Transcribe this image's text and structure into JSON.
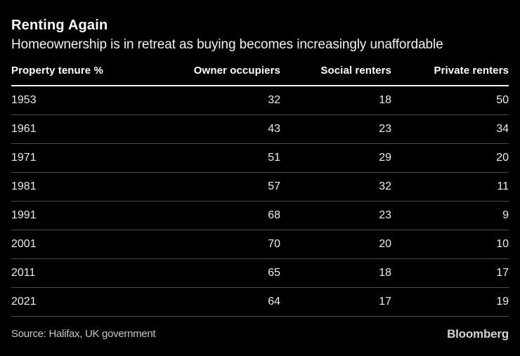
{
  "header": {
    "title": "Renting Again",
    "subtitle": "Homeownership is in retreat as buying becomes increasingly unaffordable"
  },
  "table": {
    "columns": [
      "Property tenure %",
      "Owner occupiers",
      "Social renters",
      "Private renters"
    ],
    "rows": [
      [
        "1953",
        "32",
        "18",
        "50"
      ],
      [
        "1961",
        "43",
        "23",
        "34"
      ],
      [
        "1971",
        "51",
        "29",
        "20"
      ],
      [
        "1981",
        "57",
        "32",
        "11"
      ],
      [
        "1991",
        "68",
        "23",
        "9"
      ],
      [
        "2001",
        "70",
        "20",
        "10"
      ],
      [
        "2011",
        "65",
        "18",
        "17"
      ],
      [
        "2021",
        "64",
        "17",
        "19"
      ]
    ]
  },
  "footer": {
    "source": "Source: Halifax, UK government",
    "brand": "Bloomberg"
  },
  "colors": {
    "background": "#000000",
    "title_text": "#ffffff",
    "body_text": "#ececec",
    "header_rule": "#f2f2f2",
    "row_rule": "#4a4a4a",
    "source_text": "#c6c6c6",
    "brand_text": "#d2d2d2"
  },
  "chart_data": {
    "type": "table",
    "title": "Renting Again",
    "subtitle": "Homeownership is in retreat as buying becomes increasingly unaffordable",
    "unit": "Property tenure %",
    "categories": [
      "1953",
      "1961",
      "1971",
      "1981",
      "1991",
      "2001",
      "2011",
      "2021"
    ],
    "series": [
      {
        "name": "Owner occupiers",
        "values": [
          32,
          43,
          51,
          57,
          68,
          70,
          65,
          64
        ]
      },
      {
        "name": "Social renters",
        "values": [
          18,
          23,
          29,
          32,
          23,
          20,
          18,
          17
        ]
      },
      {
        "name": "Private renters",
        "values": [
          50,
          34,
          20,
          11,
          9,
          10,
          17,
          19
        ]
      }
    ],
    "source": "Source: Halifax, UK government",
    "brand": "Bloomberg"
  }
}
